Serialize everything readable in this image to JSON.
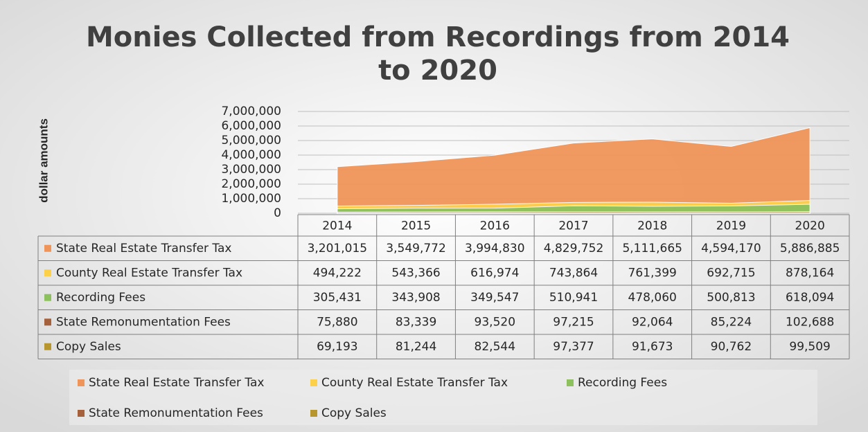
{
  "chart_data": {
    "type": "area",
    "title": "Monies Collected from Recordings from 2014",
    "title_line2": "to 2020",
    "y_axis_label": "dollar amounts",
    "categories": [
      "2014",
      "2015",
      "2016",
      "2017",
      "2018",
      "2019",
      "2020"
    ],
    "ylim": [
      0,
      7000000
    ],
    "yticks": [
      0,
      {
        "value": 1000000,
        "label": "1,000,000"
      },
      {
        "value": 2000000,
        "label": "2,000,000"
      },
      {
        "value": 3000000,
        "label": "3,000,000"
      },
      {
        "value": 4000000,
        "label": "4,000,000"
      },
      {
        "value": 5000000,
        "label": "5,000,000"
      },
      {
        "value": 6000000,
        "label": "6,000,000"
      },
      {
        "value": 7000000,
        "label": "7,000,000"
      }
    ],
    "grid": true,
    "legend": "bottom",
    "series": [
      {
        "name": "State Real Estate Transfer Tax",
        "color": "#f0955a",
        "values": [
          3201015,
          3549772,
          3994830,
          4829752,
          5111665,
          4594170,
          5886885
        ],
        "value_labels": [
          "3,201,015",
          "3,549,772",
          "3,994,830",
          "4,829,752",
          "5,111,665",
          "4,594,170",
          "5,886,885"
        ]
      },
      {
        "name": "County Real Estate Transfer Tax",
        "color": "#fdd04a",
        "values": [
          494222,
          543366,
          616974,
          743864,
          761399,
          692715,
          878164
        ],
        "value_labels": [
          "494,222",
          "543,366",
          "616,974",
          "743,864",
          "761,399",
          "692,715",
          "878,164"
        ]
      },
      {
        "name": "Recording Fees",
        "color": "#8cc15e",
        "values": [
          305431,
          343908,
          349547,
          510941,
          478060,
          500813,
          618094
        ],
        "value_labels": [
          "305,431",
          "343,908",
          "349,547",
          "510,941",
          "478,060",
          "500,813",
          "618,094"
        ]
      },
      {
        "name": "State Remonumentation Fees",
        "color": "#a5613b",
        "values": [
          75880,
          83339,
          93520,
          97215,
          92064,
          85224,
          102688
        ],
        "value_labels": [
          "75,880",
          "83,339",
          "93,520",
          "97,215",
          "92,064",
          "85,224",
          "102,688"
        ]
      },
      {
        "name": "Copy Sales",
        "color": "#b8962e",
        "values": [
          69193,
          81244,
          82544,
          97377,
          91673,
          90762,
          99509
        ],
        "value_labels": [
          "69,193",
          "81,244",
          "82,544",
          "97,377",
          "91,673",
          "90,762",
          "99,509"
        ]
      }
    ]
  }
}
